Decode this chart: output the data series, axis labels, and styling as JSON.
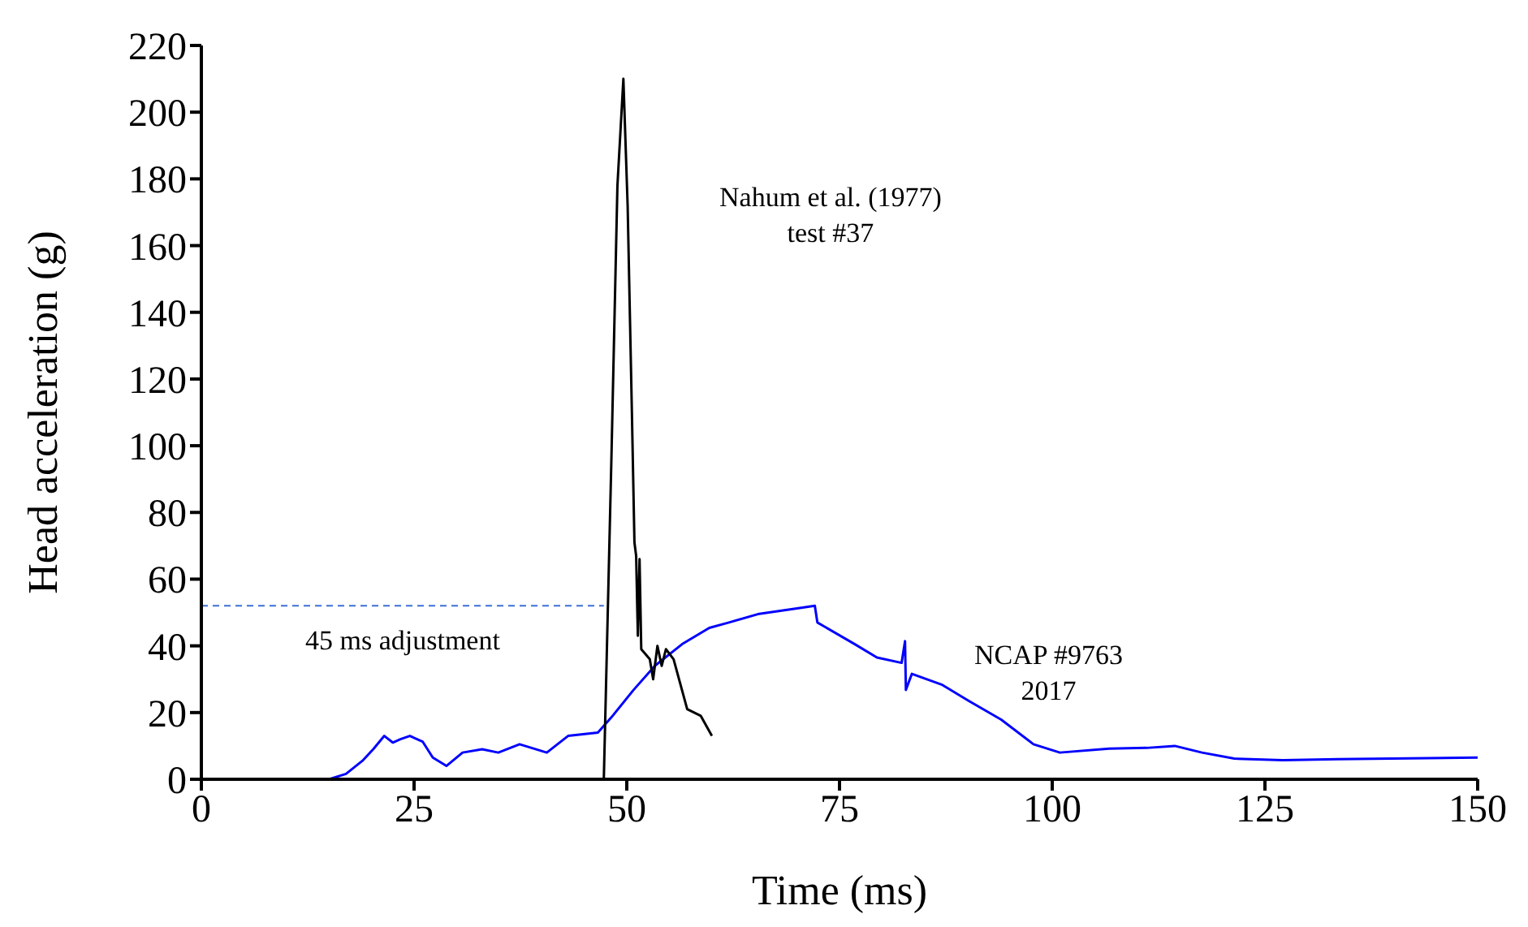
{
  "chart_data": {
    "type": "line",
    "xlabel": "Time (ms)",
    "ylabel": "Head acceleration (g)",
    "xlim": [
      0,
      150
    ],
    "xticks": [
      0,
      25,
      50,
      75,
      100,
      125,
      150
    ],
    "ylim": [
      0,
      220
    ],
    "yticks": [
      0,
      20,
      40,
      60,
      80,
      100,
      120,
      140,
      160,
      180,
      200,
      220
    ],
    "marker": "none",
    "series": [
      {
        "color": "#0000ff",
        "x": [
          0,
          15,
          17.0,
          19.0,
          20.2,
          21.5,
          22.5,
          23.4,
          24.5,
          26.0,
          27.2,
          28.8,
          30.7,
          33.0,
          34.9,
          37.4,
          40.6,
          43.1,
          46.6,
          48.2,
          50.8,
          53.3,
          56.5,
          59.7,
          62.0,
          65.4,
          70.5,
          72.1,
          72.4,
          76.8,
          79.4,
          82.3,
          82.7,
          82.8,
          83.5,
          87.0,
          90.2,
          94.0,
          97.8,
          100.9,
          106.7,
          111.1,
          114.4,
          117.6,
          121.4,
          127.1,
          133.5,
          139.8,
          150
        ],
        "values": [
          0,
          0,
          1.6,
          5.7,
          9,
          13,
          11,
          12,
          13,
          11.3,
          6.5,
          4,
          8,
          9,
          8,
          10.5,
          8,
          13,
          14,
          18.6,
          26.8,
          34,
          40.5,
          45.4,
          47,
          49.5,
          51.4,
          52,
          47,
          40.5,
          36.5,
          34.9,
          41.4,
          26.8,
          31.6,
          28.4,
          23.5,
          17.9,
          10.5,
          8,
          9.2,
          9.4,
          10,
          8,
          6.2,
          5.7,
          6,
          6.2,
          6.5
        ]
      },
      {
        "color": "#000000",
        "x": [
          47.3,
          48.2,
          48.9,
          49.6,
          50.1,
          50.6,
          50.9,
          51.1,
          51.3,
          51.5,
          51.7,
          52.7,
          53.1,
          53.6,
          54.1,
          54.6,
          55.5,
          57.1,
          58.7,
          60.0
        ],
        "values": [
          0,
          97,
          178,
          210,
          172,
          110,
          71,
          67,
          43,
          66,
          39,
          36,
          30,
          40,
          34,
          39,
          36,
          21,
          19,
          13
        ]
      },
      {
        "color": "#3b6fd8",
        "line_style": "dashed",
        "x": [
          0,
          47.3
        ],
        "values": [
          52,
          52
        ]
      }
    ],
    "annotations": [
      "Nahum et al. (1977)\ntest #37",
      "NCAP #9763\n2017",
      "45 ms adjustment"
    ]
  }
}
